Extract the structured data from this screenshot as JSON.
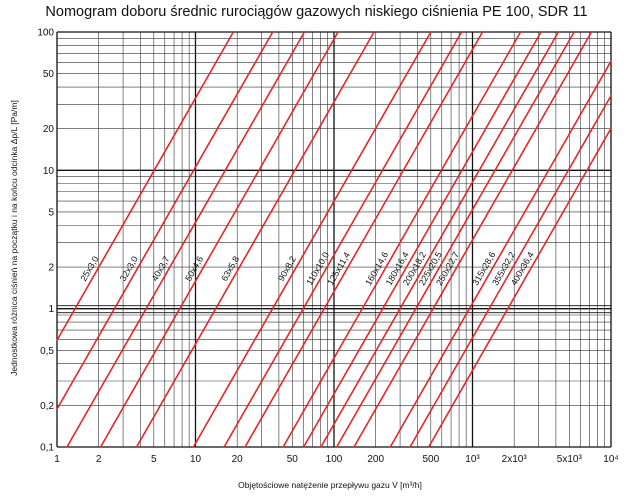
{
  "chart_data": {
    "type": "line",
    "title": "Nomogram doboru średnic  rurociągów gazowych niskiego ciśnienia  PE 100, SDR 11",
    "xlabel": "Objętościowe natężenie przepływu gazu V̇ [m³/h]",
    "ylabel": "Jednostkowa różnica ciśnień na początku i na końcu odcinka Δp/L [Pa/m]",
    "x_scale": "log",
    "y_scale": "log",
    "xlim": [
      1,
      10000
    ],
    "ylim": [
      0.1,
      100
    ],
    "grid": true,
    "x_ticks": [
      {
        "value": 1,
        "label": "1"
      },
      {
        "value": 2,
        "label": "2"
      },
      {
        "value": 5,
        "label": "5"
      },
      {
        "value": 10,
        "label": "10"
      },
      {
        "value": 20,
        "label": "20"
      },
      {
        "value": 50,
        "label": "50"
      },
      {
        "value": 100,
        "label": "100"
      },
      {
        "value": 200,
        "label": "200"
      },
      {
        "value": 500,
        "label": "500"
      },
      {
        "value": 1000,
        "label": "10³"
      },
      {
        "value": 2000,
        "label": "2x10³"
      },
      {
        "value": 5000,
        "label": "5x10³"
      },
      {
        "value": 10000,
        "label": "10⁴"
      }
    ],
    "y_ticks": [
      {
        "value": 0.1,
        "label": "0,1"
      },
      {
        "value": 0.2,
        "label": "0,2"
      },
      {
        "value": 0.5,
        "label": "0,5"
      },
      {
        "value": 1,
        "label": "1"
      },
      {
        "value": 2,
        "label": "2"
      },
      {
        "value": 5,
        "label": "5"
      },
      {
        "value": 10,
        "label": "10"
      },
      {
        "value": 20,
        "label": "20"
      },
      {
        "value": 50,
        "label": "50"
      },
      {
        "value": 100,
        "label": "100"
      }
    ],
    "series_slope": 1.75,
    "series": [
      {
        "name": "25x3,0",
        "x_at_y1": 1.35
      },
      {
        "name": "32x3,0",
        "x_at_y1": 2.6
      },
      {
        "name": "40x3,7",
        "x_at_y1": 4.4
      },
      {
        "name": "50x4,6",
        "x_at_y1": 7.7
      },
      {
        "name": "63x5,8",
        "x_at_y1": 14
      },
      {
        "name": "90x8,2",
        "x_at_y1": 36
      },
      {
        "name": "110x10,0",
        "x_at_y1": 60
      },
      {
        "name": "125x11,4",
        "x_at_y1": 85
      },
      {
        "name": "160x14,6",
        "x_at_y1": 160
      },
      {
        "name": "180x16,4",
        "x_at_y1": 225
      },
      {
        "name": "200x18,2",
        "x_at_y1": 300
      },
      {
        "name": "225x20,5",
        "x_at_y1": 390
      },
      {
        "name": "250x22,7",
        "x_at_y1": 520
      },
      {
        "name": "315x28,6",
        "x_at_y1": 950
      },
      {
        "name": "355x32,2",
        "x_at_y1": 1320
      },
      {
        "name": "400x36,4",
        "x_at_y1": 1800
      }
    ]
  }
}
